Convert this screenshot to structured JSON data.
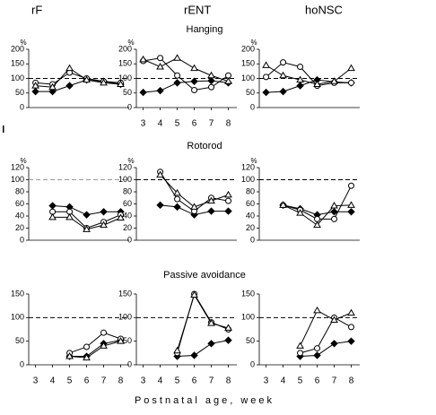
{
  "chart_data": [
    {
      "type": "line",
      "title": "rF",
      "ylabel": "%",
      "x": [
        3,
        4,
        5,
        6,
        7,
        8
      ],
      "xlim": [
        2.6,
        8.5
      ],
      "ylim": [
        0,
        200
      ],
      "yticks": [
        0,
        50,
        100,
        150,
        200
      ],
      "reference_line": 100,
      "series": [
        {
          "marker": "diamond",
          "color": "#000000",
          "values": [
            55,
            55,
            75,
            95,
            90,
            80
          ]
        },
        {
          "marker": "circle",
          "color": "#000000",
          "values": [
            85,
            80,
            120,
            100,
            90,
            85
          ]
        },
        {
          "marker": "triangle",
          "color": "#000000",
          "values": [
            75,
            70,
            135,
            95,
            85,
            80
          ]
        }
      ]
    },
    {
      "type": "line",
      "title": "rENT",
      "subtitle": "Hanging",
      "ylabel": "%",
      "x": [
        3,
        4,
        5,
        6,
        7,
        8
      ],
      "xlim": [
        2.6,
        8.5
      ],
      "xticks": [
        3,
        4,
        5,
        6,
        7,
        8
      ],
      "ylim": [
        0,
        200
      ],
      "yticks": [
        0,
        50,
        100,
        150,
        200
      ],
      "reference_line": 100,
      "series": [
        {
          "marker": "diamond",
          "color": "#000000",
          "values": [
            52,
            58,
            85,
            90,
            92,
            85
          ]
        },
        {
          "marker": "circle",
          "color": "#000000",
          "values": [
            160,
            170,
            110,
            60,
            70,
            110
          ]
        },
        {
          "marker": "triangle",
          "color": "#000000",
          "values": [
            165,
            140,
            170,
            135,
            110,
            90
          ]
        }
      ]
    },
    {
      "type": "line",
      "title": "hoNSC",
      "ylabel": "%",
      "x": [
        3,
        4,
        5,
        6,
        7,
        8
      ],
      "xlim": [
        2.6,
        8.5
      ],
      "ylim": [
        0,
        200
      ],
      "yticks": [
        0,
        50,
        100,
        150,
        200
      ],
      "reference_line": 100,
      "series": [
        {
          "marker": "diamond",
          "color": "#000000",
          "values": [
            52,
            55,
            75,
            95,
            88,
            85
          ]
        },
        {
          "marker": "circle",
          "color": "#000000",
          "values": [
            105,
            155,
            140,
            75,
            85,
            85
          ]
        },
        {
          "marker": "triangle",
          "color": "#000000",
          "values": [
            145,
            110,
            95,
            80,
            90,
            135
          ]
        }
      ]
    },
    {
      "type": "line",
      "ylabel": "%",
      "x": [
        3,
        4,
        5,
        6,
        7,
        8
      ],
      "xlim": [
        2.6,
        8.5
      ],
      "ylim": [
        0,
        120
      ],
      "yticks": [
        0,
        20,
        40,
        60,
        80,
        100,
        120
      ],
      "reference_line": 100,
      "reference_color": "#999999",
      "series": [
        {
          "marker": "diamond",
          "color": "#000000",
          "values": [
            null,
            57,
            55,
            42,
            47,
            47
          ]
        },
        {
          "marker": "circle",
          "color": "#000000",
          "values": [
            null,
            47,
            47,
            20,
            30,
            42
          ]
        },
        {
          "marker": "triangle",
          "color": "#000000",
          "values": [
            null,
            38,
            38,
            18,
            25,
            37
          ]
        }
      ]
    },
    {
      "type": "line",
      "subtitle": "Rotorod",
      "ylabel": "%",
      "x": [
        3,
        4,
        5,
        6,
        7,
        8
      ],
      "xlim": [
        2.6,
        8.5
      ],
      "ylim": [
        0,
        120
      ],
      "yticks": [
        0,
        20,
        40,
        60,
        80,
        100,
        120
      ],
      "reference_line": 100,
      "series": [
        {
          "marker": "diamond",
          "color": "#000000",
          "values": [
            null,
            58,
            55,
            42,
            48,
            48
          ]
        },
        {
          "marker": "circle",
          "color": "#000000",
          "values": [
            null,
            113,
            68,
            48,
            70,
            65
          ]
        },
        {
          "marker": "triangle",
          "color": "#000000",
          "values": [
            null,
            108,
            78,
            55,
            65,
            75
          ]
        }
      ]
    },
    {
      "type": "line",
      "ylabel": "%",
      "x": [
        3,
        4,
        5,
        6,
        7,
        8
      ],
      "xlim": [
        2.6,
        8.5
      ],
      "ylim": [
        0,
        120
      ],
      "yticks": [
        0,
        20,
        40,
        60,
        80,
        100,
        120
      ],
      "reference_line": 100,
      "series": [
        {
          "marker": "diamond",
          "color": "#000000",
          "values": [
            null,
            58,
            52,
            42,
            47,
            47
          ]
        },
        {
          "marker": "circle",
          "color": "#000000",
          "values": [
            null,
            58,
            50,
            35,
            35,
            90
          ]
        },
        {
          "marker": "triangle",
          "color": "#000000",
          "values": [
            null,
            58,
            45,
            25,
            57,
            58
          ]
        }
      ]
    },
    {
      "type": "line",
      "x": [
        3,
        4,
        5,
        6,
        7,
        8
      ],
      "xlim": [
        2.6,
        8.5
      ],
      "xticks": [
        3,
        4,
        5,
        6,
        7,
        8
      ],
      "ylim": [
        0,
        150
      ],
      "yticks": [
        0,
        50,
        100,
        150
      ],
      "reference_line": 100,
      "series": [
        {
          "marker": "diamond",
          "color": "#000000",
          "values": [
            null,
            null,
            18,
            18,
            45,
            52
          ]
        },
        {
          "marker": "circle",
          "color": "#000000",
          "values": [
            null,
            null,
            25,
            38,
            68,
            55
          ]
        },
        {
          "marker": "triangle",
          "color": "#000000",
          "values": [
            null,
            null,
            18,
            15,
            40,
            50
          ]
        }
      ]
    },
    {
      "type": "line",
      "subtitle": "Passive avoidance",
      "xlabel": "Postnatal age, week",
      "x": [
        3,
        4,
        5,
        6,
        7,
        8
      ],
      "xlim": [
        2.6,
        8.5
      ],
      "xticks": [
        3,
        4,
        5,
        6,
        7,
        8
      ],
      "ylim": [
        0,
        150
      ],
      "yticks": [
        0,
        50,
        100,
        150
      ],
      "reference_line": 100,
      "series": [
        {
          "marker": "diamond",
          "color": "#000000",
          "values": [
            null,
            null,
            18,
            20,
            45,
            52
          ]
        },
        {
          "marker": "circle",
          "color": "#000000",
          "values": [
            null,
            null,
            25,
            150,
            90,
            75
          ]
        },
        {
          "marker": "triangle",
          "color": "#000000",
          "values": [
            null,
            null,
            30,
            148,
            88,
            78
          ]
        }
      ]
    },
    {
      "type": "line",
      "x": [
        3,
        4,
        5,
        6,
        7,
        8
      ],
      "xlim": [
        2.6,
        8.5
      ],
      "xticks": [
        3,
        4,
        5,
        6,
        7,
        8
      ],
      "ylim": [
        0,
        150
      ],
      "yticks": [
        0,
        50,
        100,
        150
      ],
      "reference_line": 100,
      "series": [
        {
          "marker": "diamond",
          "color": "#000000",
          "values": [
            null,
            null,
            18,
            20,
            45,
            50
          ]
        },
        {
          "marker": "circle",
          "color": "#000000",
          "values": [
            null,
            null,
            25,
            35,
            100,
            80
          ]
        },
        {
          "marker": "triangle",
          "color": "#000000",
          "values": [
            null,
            null,
            40,
            115,
            95,
            110
          ]
        }
      ]
    }
  ]
}
